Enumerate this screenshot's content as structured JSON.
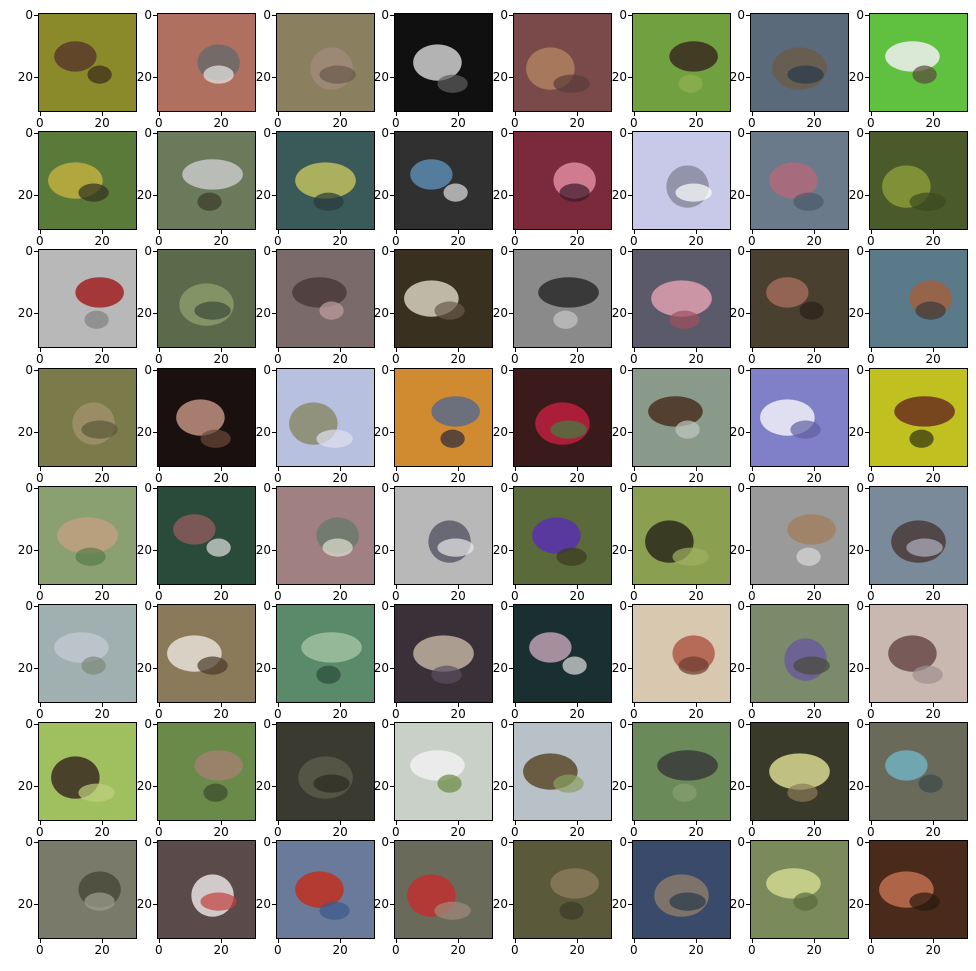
{
  "figure": {
    "rows": 8,
    "cols": 8,
    "x_tick_labels": [
      "0",
      "20"
    ],
    "y_tick_labels": [
      "0",
      "20"
    ]
  },
  "samples": [
    {
      "bg": "#8a8a2a",
      "fg": "#5a3a2a",
      "accent": "#3a2a1a"
    },
    {
      "bg": "#b07060",
      "fg": "#6a6a6a",
      "accent": "#e8e8e8"
    },
    {
      "bg": "#8a8060",
      "fg": "#a08a7a",
      "accent": "#6a5a4a"
    },
    {
      "bg": "#101010",
      "fg": "#d0d0d0",
      "accent": "#606060"
    },
    {
      "bg": "#7a4a4a",
      "fg": "#b08060",
      "accent": "#5a3a3a"
    },
    {
      "bg": "#70a040",
      "fg": "#3a2a20",
      "accent": "#90b050"
    },
    {
      "bg": "#5a6a7a",
      "fg": "#6a5a4a",
      "accent": "#2a3a4a"
    },
    {
      "bg": "#60c040",
      "fg": "#f0f0f0",
      "accent": "#5a4a3a"
    },
    {
      "bg": "#5a7a3a",
      "fg": "#c0b040",
      "accent": "#303020"
    },
    {
      "bg": "#6a7a5a",
      "fg": "#c8c8c8",
      "accent": "#3a3a2a"
    },
    {
      "bg": "#3a5a5a",
      "fg": "#c0c060",
      "accent": "#2a3a3a"
    },
    {
      "bg": "#303030",
      "fg": "#5a8ab0",
      "accent": "#e0e0e0"
    },
    {
      "bg": "#7a2a3a",
      "fg": "#e08aa0",
      "accent": "#3a1a2a"
    },
    {
      "bg": "#c8c8e8",
      "fg": "#8a8aa0",
      "accent": "#ffffff"
    },
    {
      "bg": "#6a7a8a",
      "fg": "#b06a7a",
      "accent": "#4a5a6a"
    },
    {
      "bg": "#4a5a2a",
      "fg": "#8a9a3a",
      "accent": "#3a4a20"
    },
    {
      "bg": "#b8b8b8",
      "fg": "#a02020",
      "accent": "#808080"
    },
    {
      "bg": "#5a6a4a",
      "fg": "#8a9a6a",
      "accent": "#3a4a3a"
    },
    {
      "bg": "#7a6a6a",
      "fg": "#4a3a3a",
      "accent": "#c0a0a0"
    },
    {
      "bg": "#3a3020",
      "fg": "#d8d0c0",
      "accent": "#6a5a4a"
    },
    {
      "bg": "#8a8a8a",
      "fg": "#2a2a2a",
      "accent": "#c8c8c8"
    },
    {
      "bg": "#5a5a6a",
      "fg": "#e0a0b0",
      "accent": "#a05060"
    },
    {
      "bg": "#4a4030",
      "fg": "#a06a5a",
      "accent": "#2a2018"
    },
    {
      "bg": "#5a7a8a",
      "fg": "#a06040",
      "accent": "#3a3a3a"
    },
    {
      "bg": "#7a7a4a",
      "fg": "#a0906a",
      "accent": "#5a5a3a"
    },
    {
      "bg": "#1a1010",
      "fg": "#c09080",
      "accent": "#6a4a3a"
    },
    {
      "bg": "#b8c0e0",
      "fg": "#8a8a6a",
      "accent": "#e0e0f0"
    },
    {
      "bg": "#d08a30",
      "fg": "#5a6a8a",
      "accent": "#2a2a3a"
    },
    {
      "bg": "#3a1a1a",
      "fg": "#c02040",
      "accent": "#408040"
    },
    {
      "bg": "#8a9a8a",
      "fg": "#4a3020",
      "accent": "#c0c8c0"
    },
    {
      "bg": "#8080c8",
      "fg": "#f0f0f8",
      "accent": "#6060a0"
    },
    {
      "bg": "#c0c020",
      "fg": "#6a3020",
      "accent": "#303010"
    },
    {
      "bg": "#8aa070",
      "fg": "#c0a080",
      "accent": "#5a7a4a"
    },
    {
      "bg": "#2a4a3a",
      "fg": "#8a5a5a",
      "accent": "#e0e0e0"
    },
    {
      "bg": "#a08080",
      "fg": "#6a7a6a",
      "accent": "#e0e0d0"
    },
    {
      "bg": "#b8b8b8",
      "fg": "#5a5a6a",
      "accent": "#e8e8e8"
    },
    {
      "bg": "#5a6a3a",
      "fg": "#5a30b0",
      "accent": "#3a3a20"
    },
    {
      "bg": "#8aa050",
      "fg": "#2a2a1a",
      "accent": "#a0b060"
    },
    {
      "bg": "#9a9a9a",
      "fg": "#a08060",
      "accent": "#d8d8d8"
    },
    {
      "bg": "#7a8a9a",
      "fg": "#4a3a3a",
      "accent": "#b0b0c0"
    },
    {
      "bg": "#a0b0b0",
      "fg": "#c0c8d0",
      "accent": "#7a8a7a"
    },
    {
      "bg": "#8a7a5a",
      "fg": "#e8e0d8",
      "accent": "#4a3a2a"
    },
    {
      "bg": "#5a8a6a",
      "fg": "#a0c0a0",
      "accent": "#2a4a3a"
    },
    {
      "bg": "#3a3038",
      "fg": "#c0b0a0",
      "accent": "#5a5060"
    },
    {
      "bg": "#1a3030",
      "fg": "#c0a0b0",
      "accent": "#e0e0e0"
    },
    {
      "bg": "#d8c8b0",
      "fg": "#b05a4a",
      "accent": "#6a3a30"
    },
    {
      "bg": "#7a8a6a",
      "fg": "#6a5a9a",
      "accent": "#4a4a3a"
    },
    {
      "bg": "#c8b8b0",
      "fg": "#6a4a4a",
      "accent": "#a09090"
    },
    {
      "bg": "#a0c060",
      "fg": "#3a2a20",
      "accent": "#c0d080"
    },
    {
      "bg": "#6a8a4a",
      "fg": "#a08070",
      "accent": "#3a4a2a"
    },
    {
      "bg": "#3a3a30",
      "fg": "#5a5a4a",
      "accent": "#2a2a20"
    },
    {
      "bg": "#c8d0c8",
      "fg": "#f0f0f0",
      "accent": "#6a8a40"
    },
    {
      "bg": "#b8c0c8",
      "fg": "#5a4a2a",
      "accent": "#8aa060"
    },
    {
      "bg": "#6a8a5a",
      "fg": "#3a3a3a",
      "accent": "#8aa070"
    },
    {
      "bg": "#3a3a2a",
      "fg": "#d8d890",
      "accent": "#8a7a5a"
    },
    {
      "bg": "#6a6a5a",
      "fg": "#70b0c0",
      "accent": "#3a4a4a"
    },
    {
      "bg": "#7a7a6a",
      "fg": "#4a4a3a",
      "accent": "#a0a090"
    },
    {
      "bg": "#5a4a4a",
      "fg": "#e8e0e0",
      "accent": "#c04040"
    },
    {
      "bg": "#6a7a9a",
      "fg": "#c03020",
      "accent": "#3a5a8a"
    },
    {
      "bg": "#6a6a5a",
      "fg": "#c03030",
      "accent": "#a08a7a"
    },
    {
      "bg": "#5a5a3a",
      "fg": "#8a7a5a",
      "accent": "#3a3a2a"
    },
    {
      "bg": "#3a4a6a",
      "fg": "#8a7a6a",
      "accent": "#2a3a4a"
    },
    {
      "bg": "#7a8a5a",
      "fg": "#d0d890",
      "accent": "#5a6a3a"
    },
    {
      "bg": "#4a2a1a",
      "fg": "#c07050",
      "accent": "#2a1a10"
    }
  ]
}
